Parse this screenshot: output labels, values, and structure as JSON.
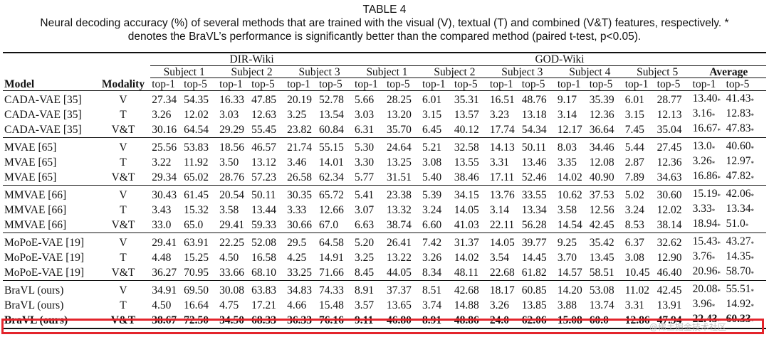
{
  "caption": {
    "title": "TABLE 4",
    "line1": "Neural decoding accuracy (%) of several methods that are trained with the visual (V), textual (T) and combined (V&T) features, respectively. *",
    "line2": "denotes the BraVL’s performance is significantly better than the compared method (paired t-test, p<0.05)."
  },
  "header": {
    "dir_wiki": "DIR-Wiki",
    "god_wiki": "GOD-Wiki",
    "subjects_dir": [
      "Subject 1",
      "Subject 2",
      "Subject 3"
    ],
    "subjects_god": [
      "Subject 1",
      "Subject 2",
      "Subject 3",
      "Subject 4",
      "Subject 5"
    ],
    "average": "Average",
    "model": "Model",
    "modality": "Modality",
    "top1": "top-1",
    "top5": "top-5"
  },
  "rows": [
    {
      "model": "CADA-VAE [35]",
      "modality": "V",
      "values": [
        "27.34",
        "54.35",
        "16.33",
        "47.85",
        "20.19",
        "52.78",
        "5.66",
        "28.25",
        "6.01",
        "35.31",
        "16.51",
        "48.76",
        "9.17",
        "35.39",
        "6.01",
        "28.77",
        "13.40",
        "41.43"
      ]
    },
    {
      "model": "CADA-VAE [35]",
      "modality": "T",
      "values": [
        "3.26",
        "12.02",
        "3.03",
        "12.63",
        "3.25",
        "13.54",
        "3.03",
        "13.20",
        "3.15",
        "13.57",
        "3.23",
        "13.18",
        "3.14",
        "12.36",
        "3.15",
        "12.13",
        "3.16",
        "12.83"
      ]
    },
    {
      "model": "CADA-VAE [35]",
      "modality": "V&T",
      "values": [
        "30.16",
        "64.54",
        "29.29",
        "55.45",
        "23.82",
        "60.84",
        "6.31",
        "35.70",
        "6.45",
        "40.12",
        "17.74",
        "54.34",
        "12.17",
        "36.64",
        "7.45",
        "35.04",
        "16.67",
        "47.83"
      ]
    },
    {
      "model": "MVAE [65]",
      "modality": "V",
      "values": [
        "25.56",
        "53.83",
        "18.56",
        "46.57",
        "21.74",
        "55.15",
        "5.30",
        "24.64",
        "5.21",
        "32.58",
        "14.13",
        "50.11",
        "8.03",
        "34.46",
        "5.44",
        "27.45",
        "13.0",
        "40.60"
      ]
    },
    {
      "model": "MVAE [65]",
      "modality": "T",
      "values": [
        "3.22",
        "11.92",
        "3.50",
        "13.12",
        "3.46",
        "14.01",
        "3.30",
        "13.25",
        "3.08",
        "13.55",
        "3.31",
        "13.46",
        "3.35",
        "12.08",
        "2.87",
        "12.36",
        "3.26",
        "12.97"
      ]
    },
    {
      "model": "MVAE [65]",
      "modality": "V&T",
      "values": [
        "29.34",
        "65.02",
        "28.76",
        "57.23",
        "26.58",
        "62.34",
        "5.77",
        "31.51",
        "5.40",
        "38.46",
        "17.11",
        "52.46",
        "14.02",
        "40.90",
        "7.89",
        "34.63",
        "16.86",
        "47.82"
      ]
    },
    {
      "model": "MMVAE [66]",
      "modality": "V",
      "values": [
        "30.43",
        "61.45",
        "20.54",
        "50.11",
        "30.35",
        "65.72",
        "5.41",
        "23.38",
        "5.39",
        "34.15",
        "13.76",
        "33.55",
        "10.62",
        "37.53",
        "5.02",
        "30.60",
        "15.19",
        "42.06"
      ]
    },
    {
      "model": "MMVAE [66]",
      "modality": "T",
      "values": [
        "3.43",
        "15.32",
        "3.58",
        "13.44",
        "3.33",
        "12.66",
        "3.07",
        "13.32",
        "3.24",
        "14.05",
        "3.14",
        "13.34",
        "3.58",
        "12.56",
        "3.24",
        "12.02",
        "3.33",
        "13.34"
      ]
    },
    {
      "model": "MMVAE [66]",
      "modality": "V&T",
      "values": [
        "33.0",
        "65.0",
        "29.41",
        "59.33",
        "30.66",
        "67.0",
        "6.63",
        "38.74",
        "6.60",
        "41.03",
        "22.11",
        "56.28",
        "14.54",
        "42.45",
        "8.53",
        "38.14",
        "18.94",
        "51.0"
      ]
    },
    {
      "model": "MoPoE-VAE [19]",
      "modality": "V",
      "values": [
        "29.41",
        "63.91",
        "22.25",
        "52.08",
        "29.5",
        "64.58",
        "5.20",
        "26.41",
        "7.42",
        "31.37",
        "14.05",
        "39.77",
        "9.25",
        "35.42",
        "6.37",
        "32.62",
        "15.43",
        "43.27"
      ]
    },
    {
      "model": "MoPoE-VAE [19]",
      "modality": "T",
      "values": [
        "4.48",
        "15.25",
        "4.50",
        "16.58",
        "4.25",
        "14.91",
        "3.25",
        "13.22",
        "3.26",
        "14.02",
        "3.54",
        "14.45",
        "3.70",
        "13.45",
        "3.08",
        "12.90",
        "3.76",
        "14.35"
      ]
    },
    {
      "model": "MoPoE-VAE [19]",
      "modality": "V&T",
      "values": [
        "36.27",
        "70.95",
        "33.66",
        "68.10",
        "33.25",
        "71.66",
        "8.45",
        "44.05",
        "8.34",
        "48.11",
        "22.68",
        "61.82",
        "14.57",
        "58.51",
        "10.45",
        "46.40",
        "20.96",
        "58.70"
      ]
    },
    {
      "model": "BraVL (ours)",
      "modality": "V",
      "values": [
        "34.91",
        "69.50",
        "30.08",
        "63.83",
        "34.83",
        "74.33",
        "8.91",
        "37.37",
        "8.51",
        "42.68",
        "18.17",
        "60.85",
        "14.20",
        "53.08",
        "11.02",
        "42.45",
        "20.08",
        "55.51"
      ]
    },
    {
      "model": "BraVL (ours)",
      "modality": "T",
      "values": [
        "4.50",
        "16.64",
        "4.75",
        "17.21",
        "4.66",
        "15.48",
        "3.57",
        "13.65",
        "3.74",
        "14.88",
        "3.26",
        "13.85",
        "3.88",
        "13.74",
        "3.31",
        "13.91",
        "3.96",
        "14.92"
      ]
    },
    {
      "model": "BraVL (ours)",
      "modality": "V&T",
      "values": [
        "38.67",
        "72.50",
        "34.50",
        "68.33",
        "36.33",
        "76.16",
        "9.11",
        "46.80",
        "8.91",
        "48.86",
        "24.0",
        "62.06",
        "15.08",
        "60.0",
        "12.86",
        "47.94",
        "22.43",
        "60.33"
      ]
    }
  ],
  "star_symbol": "*",
  "watermark": "@稀土掘金技术社区",
  "highlight_color": "#e3242b"
}
